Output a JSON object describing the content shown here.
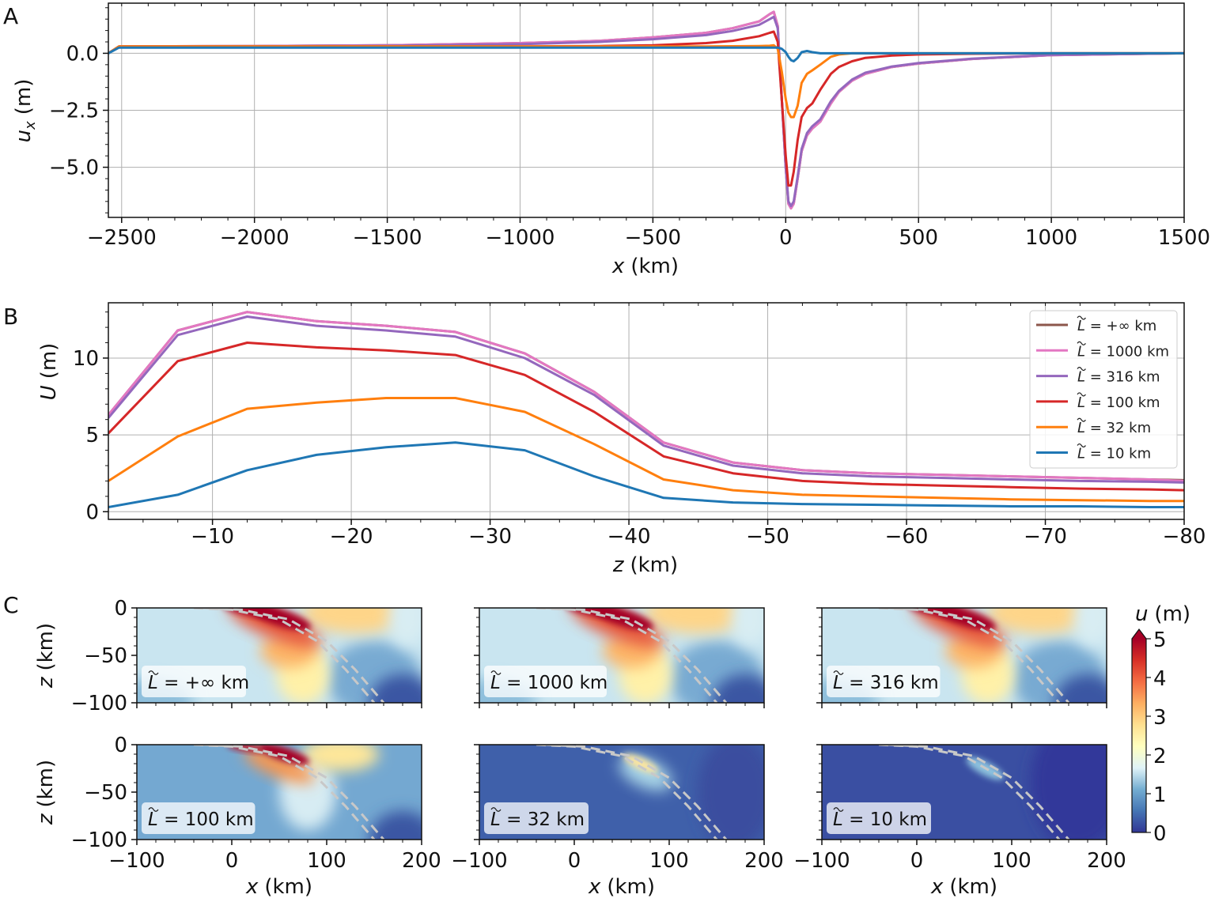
{
  "panel_labels": [
    "A",
    "B",
    "C"
  ],
  "chart_data": [
    {
      "panel": "A",
      "type": "line",
      "xlabel": {
        "symbol": "x",
        "unit": "(km)"
      },
      "ylabel": {
        "symbol": "u",
        "sub": "x",
        "unit": "(m)"
      },
      "xlim": [
        -2550,
        1500
      ],
      "ylim": [
        -7.2,
        2.2
      ],
      "grid": true,
      "xticks": [
        -2500,
        -2000,
        -1500,
        -1000,
        -500,
        0,
        500,
        1000,
        1500
      ],
      "xtick_labels": [
        "−2500",
        "−2000",
        "−1500",
        "−1000",
        "−500",
        "0",
        "500",
        "1000",
        "1500"
      ],
      "yticks": [
        0,
        -2.5,
        -5
      ],
      "ytick_labels": [
        "0.0",
        "−2.5",
        "−5.0"
      ],
      "x": [
        -2550,
        -2510,
        -2000,
        -1500,
        -1000,
        -700,
        -500,
        -300,
        -200,
        -100,
        -60,
        -45,
        -30,
        -15,
        0,
        10,
        20,
        30,
        45,
        60,
        80,
        100,
        130,
        170,
        200,
        250,
        300,
        400,
        500,
        700,
        1000,
        1500
      ],
      "series": [
        {
          "color": "#8c564b",
          "values": [
            0,
            0.3,
            0.32,
            0.35,
            0.45,
            0.55,
            0.7,
            0.9,
            1.1,
            1.4,
            1.72,
            1.82,
            1.2,
            -2,
            -5,
            -6.6,
            -6.8,
            -6.6,
            -5.5,
            -4.3,
            -3.6,
            -3.3,
            -3.0,
            -2.2,
            -1.7,
            -1.2,
            -0.9,
            -0.6,
            -0.45,
            -0.25,
            -0.08,
            0
          ]
        },
        {
          "color": "#e377c2",
          "values": [
            0,
            0.3,
            0.32,
            0.35,
            0.45,
            0.55,
            0.7,
            0.9,
            1.1,
            1.4,
            1.72,
            1.82,
            1.2,
            -2,
            -5,
            -6.6,
            -6.8,
            -6.6,
            -5.5,
            -4.3,
            -3.6,
            -3.3,
            -3.0,
            -2.2,
            -1.7,
            -1.2,
            -0.9,
            -0.6,
            -0.45,
            -0.25,
            -0.08,
            0
          ]
        },
        {
          "color": "#9467bd",
          "values": [
            0,
            0.3,
            0.31,
            0.33,
            0.4,
            0.5,
            0.62,
            0.8,
            0.98,
            1.25,
            1.5,
            1.6,
            1.1,
            -2,
            -5,
            -6.5,
            -6.7,
            -6.5,
            -5.4,
            -4.2,
            -3.5,
            -3.2,
            -2.9,
            -2.1,
            -1.65,
            -1.15,
            -0.85,
            -0.58,
            -0.43,
            -0.24,
            -0.07,
            0
          ]
        },
        {
          "color": "#d62728",
          "values": [
            0,
            0.3,
            0.3,
            0.3,
            0.3,
            0.32,
            0.35,
            0.45,
            0.55,
            0.75,
            0.9,
            0.95,
            0.5,
            -2,
            -4.5,
            -5.8,
            -5.8,
            -5.2,
            -3.8,
            -2.8,
            -2.4,
            -2.2,
            -1.6,
            -0.9,
            -0.6,
            -0.35,
            -0.2,
            -0.1,
            -0.05,
            -0.02,
            0,
            0
          ]
        },
        {
          "color": "#ff7f0e",
          "values": [
            0,
            0.3,
            0.3,
            0.3,
            0.3,
            0.3,
            0.3,
            0.3,
            0.31,
            0.32,
            0.33,
            0.35,
            0.2,
            -0.8,
            -2.0,
            -2.6,
            -2.8,
            -2.8,
            -2.3,
            -1.3,
            -0.9,
            -0.75,
            -0.5,
            -0.15,
            -0.05,
            0,
            0,
            0,
            0,
            0,
            0,
            0
          ]
        },
        {
          "color": "#1f77b4",
          "values": [
            0,
            0.25,
            0.25,
            0.25,
            0.25,
            0.25,
            0.25,
            0.25,
            0.25,
            0.25,
            0.25,
            0.25,
            0.25,
            0.2,
            0.05,
            -0.15,
            -0.3,
            -0.35,
            -0.2,
            0.05,
            0.1,
            0.05,
            0,
            0,
            0,
            0,
            0,
            0,
            0,
            0,
            0,
            0
          ]
        }
      ]
    },
    {
      "panel": "B",
      "type": "line",
      "xlabel": {
        "symbol": "z",
        "unit": "(km)"
      },
      "ylabel": {
        "symbol": "U",
        "unit": "(m)"
      },
      "xlim": [
        -2.5,
        -80
      ],
      "ylim": [
        -0.5,
        13.6
      ],
      "grid": true,
      "legend_position": "top-right",
      "xticks": [
        -10,
        -20,
        -30,
        -40,
        -50,
        -60,
        -70,
        -80
      ],
      "xtick_labels": [
        "−10",
        "−20",
        "−30",
        "−40",
        "−50",
        "−60",
        "−70",
        "−80"
      ],
      "yticks": [
        10,
        5,
        0
      ],
      "ytick_labels": [
        "10",
        "5",
        "0"
      ],
      "x": [
        -2.5,
        -7.5,
        -12.5,
        -17.5,
        -22.5,
        -27.5,
        -32.5,
        -37.5,
        -42.5,
        -47.5,
        -52.5,
        -57.5,
        -62.5,
        -67.5,
        -72.5,
        -77.5,
        -80
      ],
      "series": [
        {
          "name": {
            "sym": "L",
            "rest": " = +∞ km"
          },
          "color": "#8c564b",
          "values": [
            6.3,
            11.8,
            13.0,
            12.4,
            12.1,
            11.7,
            10.3,
            7.8,
            4.5,
            3.2,
            2.7,
            2.5,
            2.4,
            2.3,
            2.2,
            2.1,
            2.05
          ]
        },
        {
          "name": {
            "sym": "L",
            "rest": " = 1000 km"
          },
          "color": "#e377c2",
          "values": [
            6.3,
            11.8,
            13.0,
            12.4,
            12.1,
            11.7,
            10.3,
            7.8,
            4.5,
            3.2,
            2.7,
            2.5,
            2.4,
            2.3,
            2.2,
            2.1,
            2.0
          ]
        },
        {
          "name": {
            "sym": "L",
            "rest": " = 316 km"
          },
          "color": "#9467bd",
          "values": [
            6.1,
            11.5,
            12.7,
            12.1,
            11.8,
            11.4,
            10.0,
            7.6,
            4.3,
            3.0,
            2.5,
            2.3,
            2.2,
            2.1,
            2.0,
            1.95,
            1.9
          ]
        },
        {
          "name": {
            "sym": "L",
            "rest": " = 100 km"
          },
          "color": "#d62728",
          "values": [
            5.1,
            9.8,
            11.0,
            10.7,
            10.5,
            10.2,
            8.9,
            6.5,
            3.6,
            2.5,
            2.0,
            1.8,
            1.7,
            1.6,
            1.5,
            1.45,
            1.4
          ]
        },
        {
          "name": {
            "sym": "L",
            "rest": " = 32 km"
          },
          "color": "#ff7f0e",
          "values": [
            2.0,
            4.9,
            6.7,
            7.1,
            7.4,
            7.4,
            6.5,
            4.4,
            2.1,
            1.4,
            1.1,
            1.0,
            0.9,
            0.8,
            0.75,
            0.7,
            0.7
          ]
        },
        {
          "name": {
            "sym": "L",
            "rest": " = 10 km"
          },
          "color": "#1f77b4",
          "values": [
            0.3,
            1.1,
            2.7,
            3.7,
            4.2,
            4.5,
            4.0,
            2.3,
            0.9,
            0.6,
            0.5,
            0.45,
            0.4,
            0.35,
            0.35,
            0.3,
            0.3
          ]
        }
      ]
    },
    {
      "panel": "C",
      "type": "heatmap",
      "xlabel": {
        "symbol": "x",
        "unit": "(km)"
      },
      "ylabel": {
        "symbol": "z",
        "unit": "(km)"
      },
      "xlim": [
        -100,
        200
      ],
      "ylim": [
        -100,
        0
      ],
      "xticks": [
        -100,
        0,
        100,
        200
      ],
      "xtick_labels": [
        "−100",
        "0",
        "100",
        "200"
      ],
      "yticks": [
        0,
        -50,
        -100
      ],
      "ytick_labels": [
        "0",
        "−50",
        "−100"
      ],
      "panels": [
        {
          "label": {
            "sym": "L",
            "rest": " = +∞ km"
          }
        },
        {
          "label": {
            "sym": "L",
            "rest": " = 1000 km"
          }
        },
        {
          "label": {
            "sym": "L",
            "rest": " = 316 km"
          }
        },
        {
          "label": {
            "sym": "L",
            "rest": " = 100 km"
          }
        },
        {
          "label": {
            "sym": "L",
            "rest": " = 32 km"
          }
        },
        {
          "label": {
            "sym": "L",
            "rest": " = 10 km"
          }
        }
      ],
      "colorbar": {
        "label": {
          "symbol": "u",
          "unit": "(m)"
        },
        "range": [
          0,
          5
        ],
        "extend": "max",
        "colormap": "RdYlBu_r",
        "ticks": [
          0,
          1,
          2,
          3,
          4,
          5
        ],
        "tick_labels": [
          "0",
          "1",
          "2",
          "3",
          "4",
          "5"
        ],
        "colors": [
          "#313695",
          "#4575b4",
          "#74add1",
          "#e0f3f8",
          "#ffffbf",
          "#fee090",
          "#fdae61",
          "#f46d43",
          "#d73027",
          "#a50026"
        ]
      }
    }
  ]
}
